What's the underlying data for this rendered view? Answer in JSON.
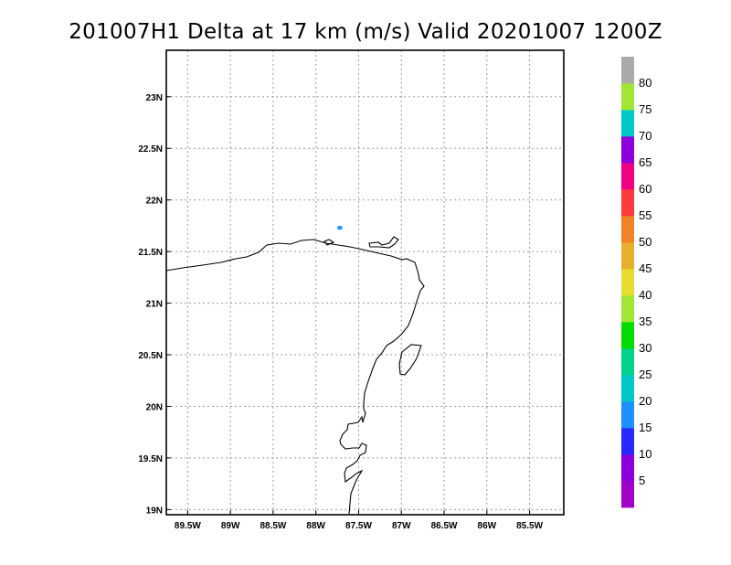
{
  "title": "201007H1 Delta at 17 km (m/s) Valid 20201007 1200Z",
  "map": {
    "lon_range": [
      -89.75,
      -85.1
    ],
    "lat_range": [
      18.95,
      23.45
    ],
    "x_ticks": [
      {
        "value": -89.5,
        "label": "89.5W"
      },
      {
        "value": -89.0,
        "label": "89W"
      },
      {
        "value": -88.5,
        "label": "88.5W"
      },
      {
        "value": -88.0,
        "label": "88W"
      },
      {
        "value": -87.5,
        "label": "87.5W"
      },
      {
        "value": -87.0,
        "label": "87W"
      },
      {
        "value": -86.5,
        "label": "86.5W"
      },
      {
        "value": -86.0,
        "label": "86W"
      },
      {
        "value": -85.5,
        "label": "85.5W"
      }
    ],
    "y_ticks": [
      {
        "value": 19.0,
        "label": "19N"
      },
      {
        "value": 19.5,
        "label": "19.5N"
      },
      {
        "value": 20.0,
        "label": "20N"
      },
      {
        "value": 20.5,
        "label": "20.5N"
      },
      {
        "value": 21.0,
        "label": "21N"
      },
      {
        "value": 21.5,
        "label": "21.5N"
      },
      {
        "value": 22.0,
        "label": "22N"
      },
      {
        "value": 22.5,
        "label": "22.5N"
      },
      {
        "value": 23.0,
        "label": "23N"
      }
    ],
    "grid": true,
    "wind_cells": [
      {
        "lon": -87.72,
        "lat": 21.73,
        "speed": 17,
        "color": "#1e90ff"
      }
    ]
  },
  "colorbar": {
    "orientation": "vertical",
    "levels": [
      {
        "color": "#a000c8",
        "label": ""
      },
      {
        "color": "#8c00dc",
        "label": "5"
      },
      {
        "color": "#2828ff",
        "label": "10"
      },
      {
        "color": "#1e90ff",
        "label": "15"
      },
      {
        "color": "#00c8c8",
        "label": "20"
      },
      {
        "color": "#00d28c",
        "label": "25"
      },
      {
        "color": "#00dc00",
        "label": "30"
      },
      {
        "color": "#a0e632",
        "label": "35"
      },
      {
        "color": "#e6dc32",
        "label": "40"
      },
      {
        "color": "#e6af2d",
        "label": "45"
      },
      {
        "color": "#f08228",
        "label": "50"
      },
      {
        "color": "#fa3c3c",
        "label": "55"
      },
      {
        "color": "#f00082",
        "label": "60"
      },
      {
        "color": "#8c00dc",
        "label": "65"
      },
      {
        "color": "#00c8c8",
        "label": "70"
      },
      {
        "color": "#a0e632",
        "label": "75"
      },
      {
        "color": "#aaaaaa",
        "label": "80"
      }
    ]
  }
}
